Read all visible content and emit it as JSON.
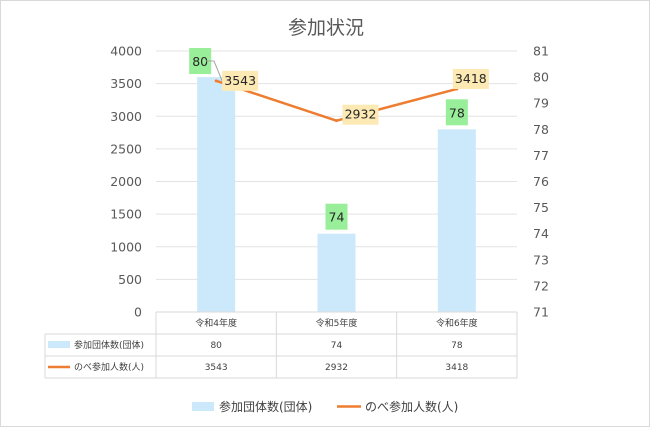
{
  "chart_data": {
    "type": "bar",
    "title": "参加状況",
    "categories": [
      "令和4年度",
      "令和5年度",
      "令和6年度"
    ],
    "series": [
      {
        "name": "参加団体数(団体)",
        "type": "bar",
        "axis": "right",
        "values": [
          80,
          74,
          78
        ],
        "color": "#cce9fb",
        "label_color": "#99ee99"
      },
      {
        "name": "のべ参加人数(人)",
        "type": "line",
        "axis": "left",
        "values": [
          3543,
          2932,
          3418
        ],
        "color": "#ed7d31",
        "label_color": "#fde9b3"
      }
    ],
    "y_left": {
      "min": 0,
      "max": 4000,
      "step": 500,
      "ticks": [
        "0",
        "500",
        "1000",
        "1500",
        "2000",
        "2500",
        "3000",
        "3500",
        "4000"
      ]
    },
    "y_right": {
      "min": 71,
      "max": 81,
      "step": 1,
      "ticks": [
        "71",
        "72",
        "73",
        "74",
        "75",
        "76",
        "77",
        "78",
        "79",
        "80",
        "81"
      ]
    },
    "table": {
      "rows": [
        {
          "label": "参加団体数(団体)",
          "values": [
            "80",
            "74",
            "78"
          ]
        },
        {
          "label": "のべ参加人数(人)",
          "values": [
            "3543",
            "2932",
            "3418"
          ]
        }
      ]
    },
    "legend": [
      "参加団体数(団体)",
      "のべ参加人数(人)"
    ],
    "legend_position": "bottom",
    "grid": true
  }
}
